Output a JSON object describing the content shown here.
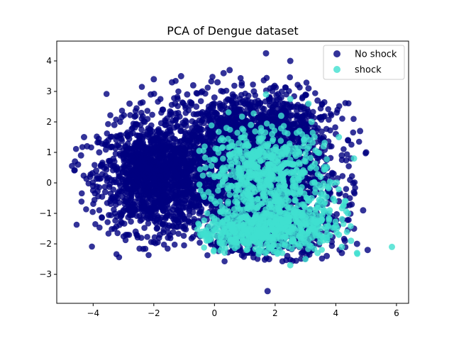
{
  "chart_data": {
    "type": "scatter",
    "title": "PCA of Dengue dataset",
    "xlabel": "",
    "ylabel": "",
    "xlim": [
      -5.2,
      6.4
    ],
    "ylim": [
      -3.95,
      4.65
    ],
    "xticks": [
      -4,
      -2,
      0,
      2,
      4,
      6
    ],
    "yticks": [
      -3,
      -2,
      -1,
      0,
      1,
      2,
      3,
      4
    ],
    "legend_position": "top-right",
    "grid": false,
    "series": [
      {
        "name": "No shock",
        "color": "#000080",
        "points": [
          [
            -4.6,
            0.7
          ],
          [
            -4.5,
            0.6
          ],
          [
            -4.3,
            1.5
          ],
          [
            -4.2,
            1.2
          ],
          [
            -4.4,
            0.9
          ],
          [
            -4.1,
            0.2
          ],
          [
            -4.0,
            -0.1
          ],
          [
            -3.9,
            0.4
          ],
          [
            -3.8,
            1.0
          ],
          [
            -3.7,
            0.6
          ],
          [
            -3.6,
            -0.3
          ],
          [
            -3.5,
            1.4
          ],
          [
            -3.4,
            0.1
          ],
          [
            -3.3,
            1.9
          ],
          [
            -3.2,
            -0.5
          ],
          [
            -3.1,
            0.9
          ],
          [
            -3.0,
            -0.9
          ],
          [
            -2.9,
            1.6
          ],
          [
            -2.8,
            2.6
          ],
          [
            -2.7,
            -0.8
          ],
          [
            -2.6,
            2.2
          ],
          [
            -2.6,
            -1.6
          ],
          [
            -2.5,
            1.2
          ],
          [
            -2.4,
            -1.2
          ],
          [
            -2.3,
            2.0
          ],
          [
            -2.2,
            -0.2
          ],
          [
            -2.1,
            2.9
          ],
          [
            -2.0,
            3.4
          ],
          [
            -1.9,
            -1.5
          ],
          [
            -1.8,
            -1.7
          ],
          [
            -1.7,
            2.4
          ],
          [
            -1.6,
            1.9
          ],
          [
            -1.5,
            -1.4
          ],
          [
            -1.4,
            3.3
          ],
          [
            -1.3,
            2.6
          ],
          [
            -1.2,
            -1.2
          ],
          [
            -1.1,
            3.5
          ],
          [
            -1.0,
            -1.5
          ],
          [
            -0.9,
            2.9
          ],
          [
            -0.8,
            -1.3
          ],
          [
            -0.7,
            3.2
          ],
          [
            -0.6,
            2.5
          ],
          [
            -0.5,
            -1.0
          ],
          [
            -0.4,
            3.0
          ],
          [
            -0.3,
            2.2
          ],
          [
            -0.2,
            -1.6
          ],
          [
            -0.1,
            1.9
          ],
          [
            0.0,
            2.8
          ],
          [
            0.1,
            3.3
          ],
          [
            0.2,
            -1.8
          ],
          [
            0.3,
            3.6
          ],
          [
            0.5,
            3.7
          ],
          [
            0.6,
            2.9
          ],
          [
            0.7,
            2.1
          ],
          [
            0.8,
            -2.2
          ],
          [
            0.9,
            3.2
          ],
          [
            1.0,
            -1.9
          ],
          [
            1.1,
            2.7
          ],
          [
            1.2,
            -2.3
          ],
          [
            1.3,
            3.0
          ],
          [
            1.5,
            2.6
          ],
          [
            1.6,
            -2.0
          ],
          [
            1.7,
            4.25
          ],
          [
            1.8,
            -2.5
          ],
          [
            1.9,
            2.3
          ],
          [
            2.0,
            -2.2
          ],
          [
            2.2,
            2.8
          ],
          [
            2.4,
            -2.4
          ],
          [
            2.5,
            4.0
          ],
          [
            2.6,
            2.5
          ],
          [
            2.8,
            -2.1
          ],
          [
            3.0,
            2.3
          ],
          [
            3.1,
            3.1
          ],
          [
            3.2,
            -2.0
          ],
          [
            3.3,
            1.8
          ],
          [
            3.4,
            2.7
          ],
          [
            3.5,
            -1.6
          ],
          [
            3.6,
            1.5
          ],
          [
            3.7,
            -2.4
          ],
          [
            3.8,
            1.2
          ],
          [
            3.9,
            -1.2
          ],
          [
            4.0,
            1.6
          ],
          [
            4.1,
            -0.6
          ],
          [
            4.2,
            0.9
          ],
          [
            4.3,
            -1.9
          ],
          [
            4.4,
            1.4
          ],
          [
            4.5,
            0.8
          ],
          [
            4.6,
            -0.3
          ],
          [
            4.7,
            -2.0
          ],
          [
            4.8,
            1.7
          ],
          [
            4.9,
            -0.9
          ],
          [
            5.0,
            1.0
          ],
          [
            5.05,
            -2.2
          ],
          [
            4.6,
            -1.5
          ],
          [
            4.2,
            -2.3
          ],
          [
            1.75,
            -3.55
          ],
          [
            -2.8,
            0.4
          ],
          [
            -2.3,
            0.8
          ],
          [
            -1.8,
            0.2
          ],
          [
            -1.5,
            0.6
          ],
          [
            -1.0,
            0.9
          ],
          [
            -0.5,
            0.3
          ],
          [
            -2.5,
            -0.4
          ],
          [
            -1.2,
            -0.7
          ],
          [
            -0.3,
            1.2
          ],
          [
            0.4,
            1.0
          ],
          [
            -3.3,
            0.7
          ],
          [
            -2.0,
            1.3
          ],
          [
            -1.7,
            -0.9
          ],
          [
            -0.8,
            1.6
          ],
          [
            0.6,
            1.4
          ],
          [
            1.2,
            1.8
          ],
          [
            2.3,
            1.6
          ],
          [
            3.6,
            0.5
          ],
          [
            2.9,
            -0.8
          ],
          [
            3.3,
            -1.4
          ],
          [
            2.1,
            -1.7
          ],
          [
            0.9,
            -1.0
          ],
          [
            0.2,
            0.5
          ],
          [
            -0.6,
            -0.4
          ]
        ]
      },
      {
        "name": "shock",
        "color": "#40E0D0",
        "points": [
          [
            -0.5,
            1.05
          ],
          [
            -0.3,
            0.5
          ],
          [
            -0.2,
            -0.3
          ],
          [
            0.0,
            -0.6
          ],
          [
            0.2,
            0.3
          ],
          [
            0.3,
            -1.0
          ],
          [
            0.4,
            1.8
          ],
          [
            0.5,
            0.9
          ],
          [
            0.6,
            -1.5
          ],
          [
            0.7,
            0.2
          ],
          [
            0.8,
            1.3
          ],
          [
            0.9,
            -1.8
          ],
          [
            1.0,
            0.6
          ],
          [
            1.1,
            -0.4
          ],
          [
            1.2,
            1.9
          ],
          [
            1.3,
            -1.2
          ],
          [
            1.4,
            0.9
          ],
          [
            1.5,
            -2.0
          ],
          [
            1.6,
            0.3
          ],
          [
            1.7,
            2.9
          ],
          [
            1.8,
            -0.7
          ],
          [
            1.9,
            1.6
          ],
          [
            2.0,
            -1.6
          ],
          [
            2.1,
            0.8
          ],
          [
            2.2,
            2.2
          ],
          [
            2.3,
            -1.0
          ],
          [
            2.4,
            1.1
          ],
          [
            2.5,
            2.75
          ],
          [
            2.6,
            -1.9
          ],
          [
            2.7,
            0.4
          ],
          [
            2.8,
            1.7
          ],
          [
            2.9,
            -1.3
          ],
          [
            3.0,
            0.7
          ],
          [
            3.1,
            2.6
          ],
          [
            3.2,
            -0.5
          ],
          [
            3.3,
            1.5
          ],
          [
            3.4,
            -2.3
          ],
          [
            3.5,
            0.2
          ],
          [
            3.6,
            1.2
          ],
          [
            3.7,
            -1.8
          ],
          [
            3.8,
            -0.9
          ],
          [
            3.9,
            0.0
          ],
          [
            4.0,
            -1.4
          ],
          [
            4.1,
            1.5
          ],
          [
            4.2,
            -2.1
          ],
          [
            4.3,
            -0.6
          ],
          [
            4.5,
            -1.9
          ],
          [
            4.7,
            -2.3
          ],
          [
            5.85,
            -2.1
          ],
          [
            2.5,
            -2.7
          ],
          [
            4.4,
            -1.0
          ],
          [
            3.0,
            -2.5
          ],
          [
            1.2,
            -1.4
          ],
          [
            0.5,
            -1.3
          ],
          [
            1.9,
            -1.5
          ],
          [
            2.7,
            -1.1
          ],
          [
            3.4,
            1.0
          ],
          [
            2.2,
            0.5
          ],
          [
            1.0,
            1.2
          ],
          [
            0.1,
            -1.4
          ],
          [
            1.6,
            1.5
          ],
          [
            2.9,
            0.3
          ],
          [
            3.6,
            -0.7
          ],
          [
            4.6,
            0.8
          ],
          [
            0.7,
            -0.2
          ],
          [
            1.4,
            -0.8
          ],
          [
            2.4,
            -0.3
          ],
          [
            3.2,
            2.0
          ],
          [
            4.1,
            -1.7
          ],
          [
            0.3,
            1.4
          ]
        ]
      }
    ]
  }
}
